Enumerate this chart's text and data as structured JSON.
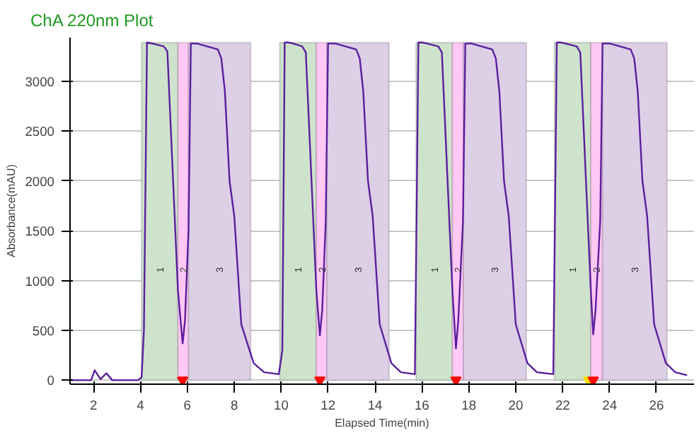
{
  "chart_data": {
    "type": "line",
    "title": "ChA 220nm Plot",
    "xlabel": "Elapsed Time(min)",
    "ylabel": "Absorbance(mAU)",
    "xlim": [
      1,
      27.6
    ],
    "ylim": [
      -40,
      3440
    ],
    "xticks": [
      2,
      4,
      6,
      8,
      10,
      12,
      14,
      16,
      18,
      20,
      22,
      24,
      26
    ],
    "yticks": [
      0,
      500,
      1000,
      1500,
      2000,
      2500,
      3000
    ],
    "grid": "y",
    "series": [
      {
        "color": "#5b1f9e",
        "x": [
          1,
          1.9,
          2.05,
          2.3,
          2.55,
          2.8,
          3.9,
          4.05,
          4.15,
          4.28,
          4.5,
          5.0,
          5.15,
          5.3,
          5.6,
          5.8,
          5.9,
          6.05,
          6.15,
          6.4,
          7.3,
          7.45,
          7.6,
          7.8,
          8.0,
          8.3,
          8.83,
          9.27,
          9.9,
          10.05,
          10.15,
          10.3,
          10.5,
          10.9,
          11.05,
          11.2,
          11.5,
          11.65,
          11.75,
          11.9,
          12.0,
          12.3,
          13.2,
          13.35,
          13.5,
          13.7,
          13.9,
          14.2,
          14.7,
          15.1,
          15.7,
          15.85,
          16.0,
          16.2,
          16.7,
          16.85,
          17.0,
          17.3,
          17.45,
          17.55,
          17.75,
          17.85,
          18.1,
          19.0,
          19.15,
          19.3,
          19.5,
          19.7,
          20.0,
          20.5,
          20.9,
          21.6,
          21.75,
          21.9,
          22.1,
          22.6,
          22.75,
          22.9,
          23.2,
          23.3,
          23.4,
          23.6,
          23.7,
          24.0,
          24.9,
          25.05,
          25.2,
          25.4,
          25.6,
          25.9,
          26.4,
          26.8,
          27.3
        ],
        "values": [
          0,
          0,
          100,
          10,
          70,
          0,
          0,
          30,
          500,
          3390,
          3380,
          3350,
          3300,
          2500,
          900,
          370,
          600,
          1500,
          3380,
          3380,
          3320,
          3230,
          2900,
          2000,
          1650,
          560,
          170,
          80,
          60,
          300,
          3390,
          3390,
          3380,
          3350,
          3290,
          2500,
          900,
          450,
          700,
          1600,
          3380,
          3380,
          3320,
          3230,
          2900,
          2000,
          1650,
          560,
          170,
          80,
          60,
          3390,
          3390,
          3380,
          3350,
          3290,
          2500,
          900,
          320,
          600,
          1600,
          3380,
          3380,
          3320,
          3230,
          2900,
          2000,
          1650,
          560,
          170,
          80,
          60,
          3390,
          3390,
          3380,
          3350,
          3290,
          2500,
          900,
          460,
          700,
          1600,
          3380,
          3380,
          3320,
          3230,
          2900,
          2000,
          1650,
          560,
          170,
          80,
          50
        ]
      },
      {
        "type": "scatter",
        "marker": "triangle",
        "x": [
          5.8,
          11.65,
          17.45,
          23.1,
          23.3
        ],
        "values": [
          0,
          0,
          0,
          0,
          0
        ],
        "colors": [
          "#ff0000",
          "#ff0000",
          "#ff0000",
          "#f5e000",
          "#ff0000"
        ]
      }
    ],
    "bands": [
      {
        "axis": "x",
        "from": 4.05,
        "to": 5.6,
        "label": "1",
        "color": "#cfe2cc"
      },
      {
        "axis": "x",
        "from": 5.6,
        "to": 6.05,
        "label": "2",
        "color": "#ffc8f5"
      },
      {
        "axis": "x",
        "from": 6.05,
        "to": 8.7,
        "label": "3",
        "color": "#dccfe6"
      },
      {
        "axis": "x",
        "from": 9.94,
        "to": 11.5,
        "label": "1",
        "color": "#cfe2cc"
      },
      {
        "axis": "x",
        "from": 11.5,
        "to": 11.95,
        "label": "2",
        "color": "#ffc8f5"
      },
      {
        "axis": "x",
        "from": 11.95,
        "to": 14.6,
        "label": "3",
        "color": "#dccfe6"
      },
      {
        "axis": "x",
        "from": 15.75,
        "to": 17.3,
        "label": "1",
        "color": "#cfe2cc"
      },
      {
        "axis": "x",
        "from": 17.3,
        "to": 17.77,
        "label": "2",
        "color": "#ffc8f5"
      },
      {
        "axis": "x",
        "from": 17.77,
        "to": 20.45,
        "label": "3",
        "color": "#dccfe6"
      },
      {
        "axis": "x",
        "from": 21.65,
        "to": 23.2,
        "label": "1",
        "color": "#cfe2cc"
      },
      {
        "axis": "x",
        "from": 23.2,
        "to": 23.7,
        "label": "2",
        "color": "#ffc8f5"
      },
      {
        "axis": "x",
        "from": 23.7,
        "to": 26.45,
        "label": "3",
        "color": "#dccfe6"
      }
    ]
  }
}
